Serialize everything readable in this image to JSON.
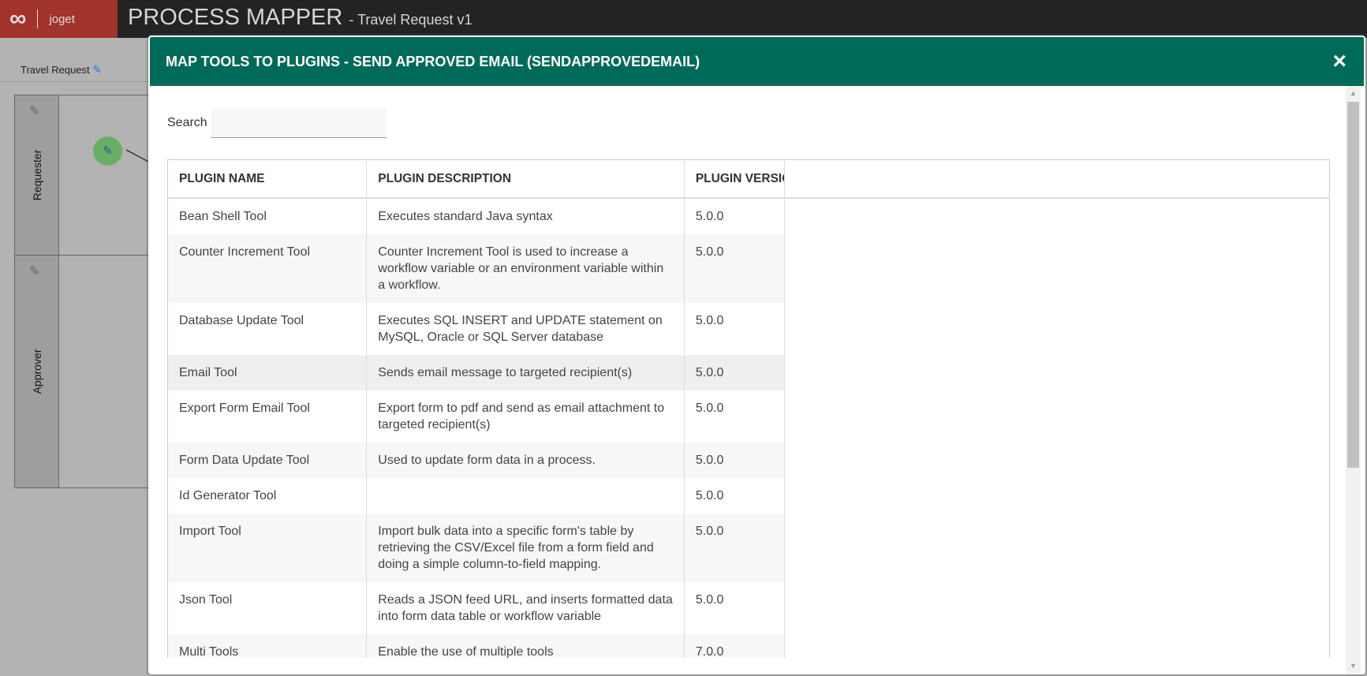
{
  "app": {
    "logo_text": "joget",
    "title": "PROCESS MAPPER",
    "subtitle": "- Travel Request v1"
  },
  "process": {
    "name": "Travel Request"
  },
  "lanes": [
    {
      "name": "Requester"
    },
    {
      "name": "Approver"
    }
  ],
  "dialog": {
    "title": "MAP TOOLS TO PLUGINS - SEND APPROVED EMAIL (SENDAPPROVEDEMAIL)",
    "close_icon": "×",
    "search_label": "Search",
    "search_value": "",
    "columns": [
      "PLUGIN NAME",
      "PLUGIN DESCRIPTION",
      "PLUGIN VERSION"
    ],
    "rows": [
      {
        "name": "Bean Shell Tool",
        "description": "Executes standard Java syntax",
        "version": "5.0.0"
      },
      {
        "name": "Counter Increment Tool",
        "description": "Counter Increment Tool is used to increase a workflow variable or an environment variable within a workflow.",
        "version": "5.0.0"
      },
      {
        "name": "Database Update Tool",
        "description": "Executes SQL INSERT and UPDATE statement on MySQL, Oracle or SQL Server database",
        "version": "5.0.0"
      },
      {
        "name": "Email Tool",
        "description": "Sends email message to targeted recipient(s)",
        "version": "5.0.0"
      },
      {
        "name": "Export Form Email Tool",
        "description": "Export form to pdf and send as email attachment to targeted recipient(s)",
        "version": "5.0.0"
      },
      {
        "name": "Form Data Update Tool",
        "description": "Used to update form data in a process.",
        "version": "5.0.0"
      },
      {
        "name": "Id Generator Tool",
        "description": "",
        "version": "5.0.0"
      },
      {
        "name": "Import Tool",
        "description": "Import bulk data into a specific form's table by retrieving the CSV/Excel file from a form field and doing a simple column-to-field mapping.",
        "version": "5.0.0"
      },
      {
        "name": "Json Tool",
        "description": "Reads a JSON feed URL, and inserts formatted data into form data table or workflow variable",
        "version": "5.0.0"
      },
      {
        "name": "Multi Tools",
        "description": "Enable the use of multiple tools",
        "version": "7.0.0"
      }
    ]
  },
  "colors": {
    "header_bg": "#232323",
    "logo_bg": "#a2332b",
    "dialog_header": "#006a58"
  }
}
